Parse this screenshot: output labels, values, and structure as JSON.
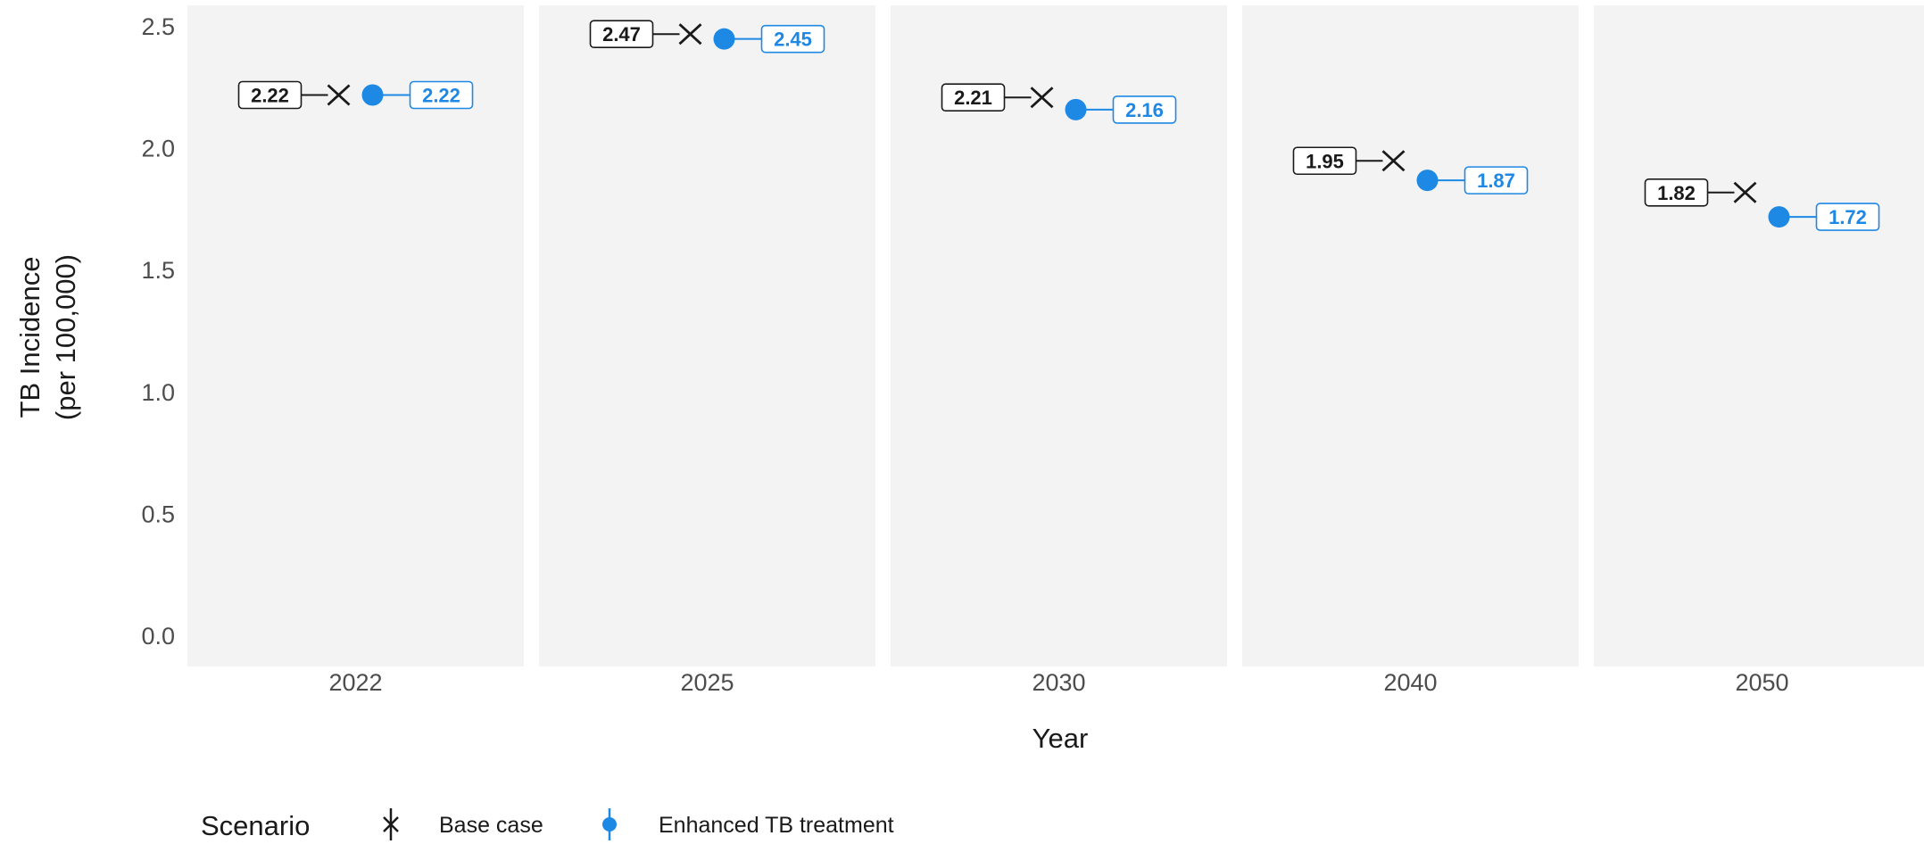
{
  "chart_data": {
    "type": "scatter",
    "x": [
      "2022",
      "2025",
      "2030",
      "2040",
      "2050"
    ],
    "xlabel": "Year",
    "ylabel_line1": "TB Incidence",
    "ylabel_line2": "(per 100,000)",
    "ylim": [
      0,
      2.5
    ],
    "yticks": [
      "0.0",
      "0.5",
      "1.0",
      "1.5",
      "2.0",
      "2.5"
    ],
    "grid": false,
    "facets": true,
    "legend": {
      "title": "Scenario",
      "position": "bottom-left"
    },
    "series": [
      {
        "name": "Base case",
        "marker": "x-cross",
        "color": "#1a1a1a",
        "values": [
          2.22,
          2.47,
          2.21,
          1.95,
          1.82
        ],
        "labels": [
          "2.22",
          "2.47",
          "2.21",
          "1.95",
          "1.82"
        ]
      },
      {
        "name": "Enhanced TB treatment",
        "marker": "circle",
        "color": "#1e88e5",
        "values": [
          2.22,
          2.45,
          2.16,
          1.87,
          1.72
        ],
        "labels": [
          "2.22",
          "2.45",
          "2.16",
          "1.87",
          "1.72"
        ]
      }
    ],
    "colors": {
      "panel_bg": "#f3f3f3",
      "base": "#1a1a1a",
      "enhanced": "#1e88e5"
    }
  }
}
